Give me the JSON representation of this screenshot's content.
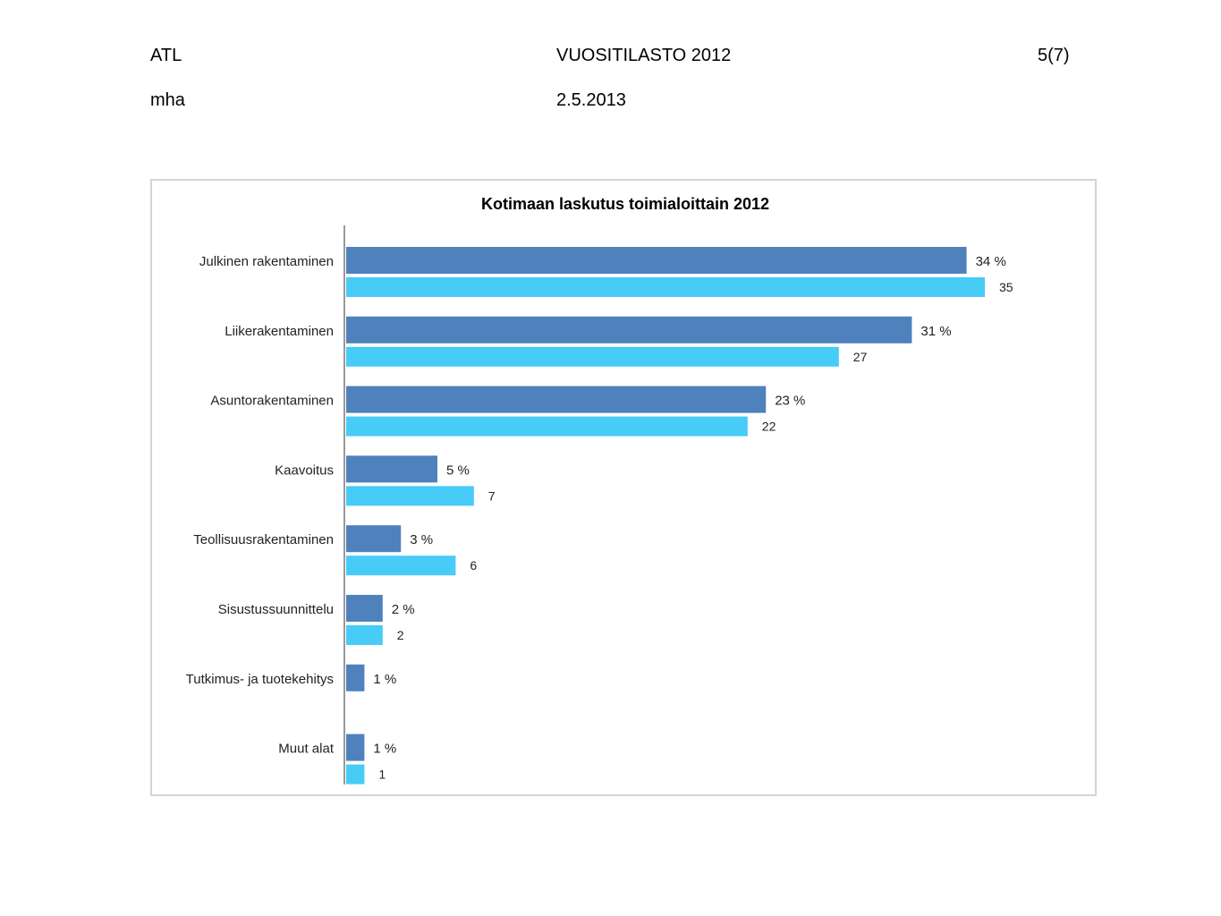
{
  "header": {
    "org": "ATL",
    "doc_title": "VUOSITILASTO 2012",
    "page": "5(7)",
    "author": "mha",
    "date": "2.5.2013"
  },
  "colors": {
    "series_dark": "#4f81bd",
    "series_light": "#47cbf7",
    "axis": "#9a9a9a"
  },
  "chart_data": {
    "type": "bar",
    "orientation": "horizontal",
    "title": "Kotimaan laskutus toimialoittain 2012",
    "categories": [
      "Julkinen rakentaminen",
      "Liikerakentaminen",
      "Asuntorakentaminen",
      "Kaavoitus",
      "Teollisuusrakentaminen",
      "Sisustussuunnittelu",
      "Tutkimus- ja tuotekehitys",
      "Muut alat"
    ],
    "series": [
      {
        "values": [
          34,
          31,
          23,
          5,
          3,
          2,
          1,
          1
        ],
        "labels": [
          "34 %",
          "31 %",
          "23 %",
          "5 %",
          "3 %",
          "2 %",
          "1 %",
          "1 %"
        ]
      },
      {
        "values": [
          35,
          27,
          22,
          7,
          6,
          2,
          null,
          1
        ],
        "labels": [
          "35",
          "27",
          "22",
          "7",
          "6",
          "2",
          "",
          "1"
        ]
      }
    ],
    "xlim": [
      0,
      35
    ],
    "grid": false,
    "legend": "none"
  }
}
